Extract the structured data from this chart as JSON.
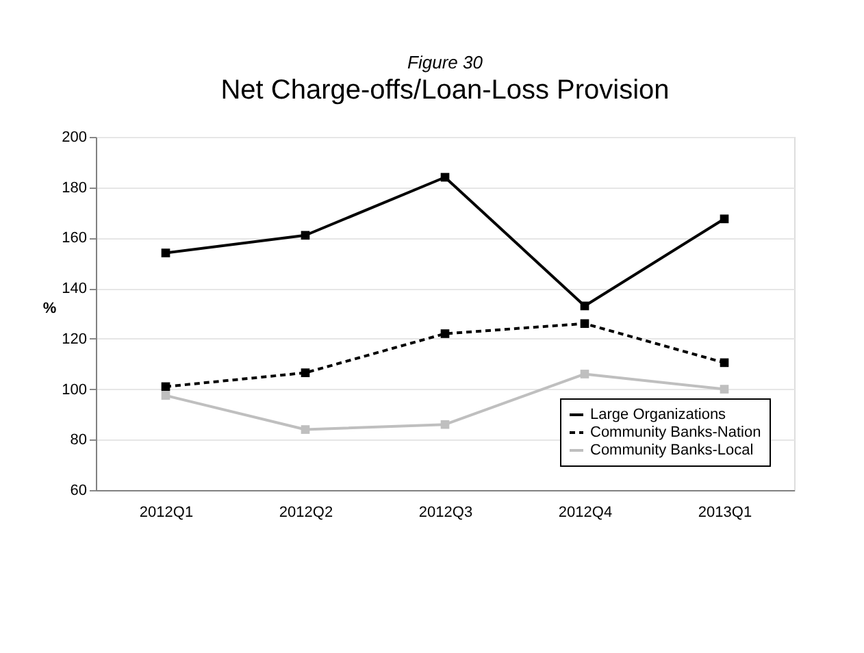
{
  "chart_data": {
    "type": "line",
    "title": "Net Charge-offs/Loan-Loss Provision",
    "subtitle": "Figure 30",
    "ylabel": "%",
    "categories": [
      "2012Q1",
      "2012Q2",
      "2012Q3",
      "2012Q4",
      "2013Q1"
    ],
    "series": [
      {
        "name": "Large Organizations",
        "color": "#000000",
        "line_style": "solid",
        "values": [
          154,
          161,
          184,
          133,
          167.5
        ]
      },
      {
        "name": "Community Banks-Nation",
        "color": "#000000",
        "line_style": "dashed",
        "values": [
          101,
          106.5,
          122,
          126,
          110.5
        ]
      },
      {
        "name": "Community Banks-Local",
        "color": "#bfbfbf",
        "line_style": "solid",
        "values": [
          97.5,
          84,
          86,
          106,
          100
        ]
      }
    ],
    "ylim": [
      60,
      200
    ],
    "yticks": [
      60,
      80,
      100,
      120,
      140,
      160,
      180,
      200
    ],
    "grid": "y",
    "legend": "bottom right",
    "marker": "square"
  }
}
